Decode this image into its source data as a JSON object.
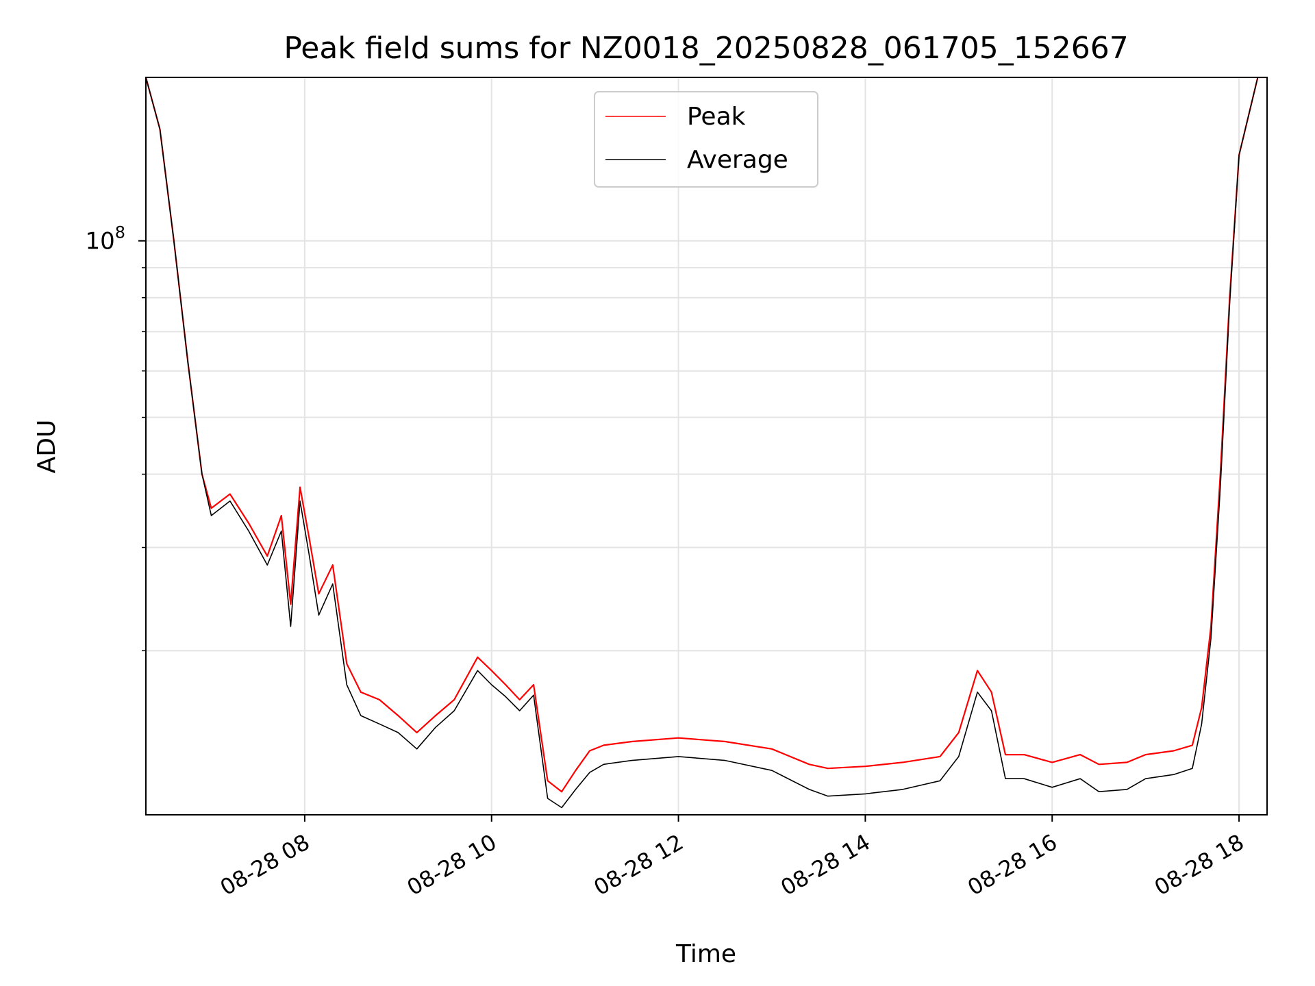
{
  "chart_data": {
    "type": "line",
    "title": "Peak field sums for NZ0018_20250828_061705_152667",
    "xlabel": "Time",
    "ylabel": "ADU",
    "yscale": "log",
    "x_unit": "hours (2025-08-28 local time)",
    "xlim": [
      6.3,
      18.3
    ],
    "ylim": [
      10500000,
      190000000
    ],
    "x_ticks": [
      {
        "value": 8,
        "label": "08-28 08"
      },
      {
        "value": 10,
        "label": "08-28 10"
      },
      {
        "value": 12,
        "label": "08-28 12"
      },
      {
        "value": 14,
        "label": "08-28 14"
      },
      {
        "value": 16,
        "label": "08-28 16"
      },
      {
        "value": 18,
        "label": "08-28 18"
      }
    ],
    "y_ticks": [
      {
        "value": 100000000,
        "base": "10",
        "exponent": "8"
      }
    ],
    "y_minor_ticks": [
      20000000,
      30000000,
      40000000,
      50000000,
      60000000,
      70000000,
      80000000,
      90000000,
      200000000
    ],
    "grid": true,
    "legend_position": "top-center",
    "series": [
      {
        "name": "Peak",
        "color": "#ff0000",
        "x": [
          6.3,
          6.45,
          6.6,
          6.75,
          6.9,
          7.0,
          7.2,
          7.4,
          7.6,
          7.75,
          7.85,
          7.95,
          8.05,
          8.15,
          8.3,
          8.45,
          8.6,
          8.8,
          9.0,
          9.2,
          9.4,
          9.6,
          9.85,
          10.0,
          10.15,
          10.3,
          10.45,
          10.6,
          10.75,
          10.9,
          11.05,
          11.2,
          11.5,
          12.0,
          12.5,
          13.0,
          13.4,
          13.6,
          14.0,
          14.4,
          14.8,
          15.0,
          15.2,
          15.35,
          15.5,
          15.7,
          16.0,
          16.3,
          16.5,
          16.8,
          17.0,
          17.3,
          17.5,
          17.6,
          17.7,
          17.8,
          17.9,
          18.0,
          18.2,
          18.3
        ],
        "y": [
          190000000,
          155000000,
          100000000,
          62000000,
          40000000,
          35000000,
          37000000,
          33000000,
          29000000,
          34000000,
          24000000,
          38000000,
          31000000,
          25000000,
          28000000,
          19000000,
          17000000,
          16500000,
          15500000,
          14500000,
          15500000,
          16500000,
          19500000,
          18500000,
          17500000,
          16500000,
          17500000,
          12000000,
          11500000,
          12500000,
          13500000,
          13800000,
          14000000,
          14200000,
          14000000,
          13600000,
          12800000,
          12600000,
          12700000,
          12900000,
          13200000,
          14500000,
          18500000,
          17000000,
          13300000,
          13300000,
          12900000,
          13300000,
          12800000,
          12900000,
          13300000,
          13500000,
          13800000,
          16000000,
          22000000,
          40000000,
          80000000,
          140000000,
          190000000,
          190000000
        ]
      },
      {
        "name": "Average",
        "color": "#000000",
        "x": [
          6.3,
          6.45,
          6.6,
          6.75,
          6.9,
          7.0,
          7.2,
          7.4,
          7.6,
          7.75,
          7.85,
          7.95,
          8.05,
          8.15,
          8.3,
          8.45,
          8.6,
          8.8,
          9.0,
          9.2,
          9.4,
          9.6,
          9.85,
          10.0,
          10.15,
          10.3,
          10.45,
          10.6,
          10.75,
          10.9,
          11.05,
          11.2,
          11.5,
          12.0,
          12.5,
          13.0,
          13.4,
          13.6,
          14.0,
          14.4,
          14.8,
          15.0,
          15.2,
          15.35,
          15.5,
          15.7,
          16.0,
          16.3,
          16.5,
          16.8,
          17.0,
          17.3,
          17.5,
          17.6,
          17.7,
          17.8,
          17.9,
          18.0,
          18.2,
          18.3
        ],
        "y": [
          190000000,
          155000000,
          100000000,
          62000000,
          40000000,
          34000000,
          36000000,
          32000000,
          28000000,
          32000000,
          22000000,
          36000000,
          29000000,
          23000000,
          26000000,
          17500000,
          15500000,
          15000000,
          14500000,
          13600000,
          14800000,
          15800000,
          18500000,
          17500000,
          16700000,
          15800000,
          16800000,
          11200000,
          10800000,
          11600000,
          12400000,
          12800000,
          13000000,
          13200000,
          13000000,
          12500000,
          11600000,
          11300000,
          11400000,
          11600000,
          12000000,
          13200000,
          17000000,
          15800000,
          12100000,
          12100000,
          11700000,
          12100000,
          11500000,
          11600000,
          12100000,
          12300000,
          12600000,
          15000000,
          21000000,
          38000000,
          78000000,
          140000000,
          190000000,
          190000000
        ]
      }
    ]
  }
}
